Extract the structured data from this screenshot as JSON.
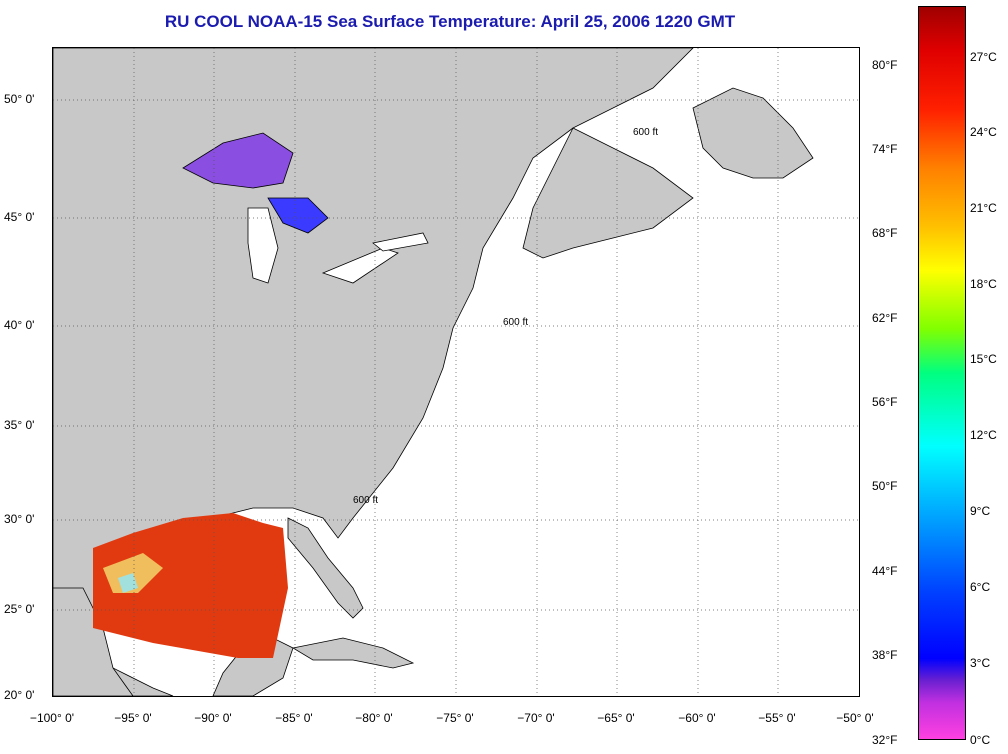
{
  "title": "RU COOL  NOAA-15  Sea Surface Temperature:  April 25, 2006 1220 GMT",
  "y_labels": [
    "50° 0'",
    "45° 0'",
    "40° 0'",
    "35° 0'",
    "30° 0'",
    "25° 0'",
    "20° 0'"
  ],
  "x_labels": [
    "−100° 0'",
    "−95° 0'",
    "−90° 0'",
    "−85° 0'",
    "−80° 0'",
    "−75° 0'",
    "−70° 0'",
    "−65° 0'",
    "−60° 0'",
    "−55° 0'",
    "−50° 0'"
  ],
  "colorbar": {
    "fahrenheit": [
      "80°F",
      "74°F",
      "68°F",
      "62°F",
      "56°F",
      "50°F",
      "44°F",
      "38°F",
      "32°F"
    ],
    "celsius": [
      "27°C",
      "24°C",
      "21°C",
      "18°C",
      "15°C",
      "12°C",
      "9°C",
      "6°C",
      "3°C",
      "0°C"
    ]
  },
  "contour_label": "600 ft",
  "colors": {
    "land": "#c8c8c8",
    "title": "#1b1bb0"
  }
}
